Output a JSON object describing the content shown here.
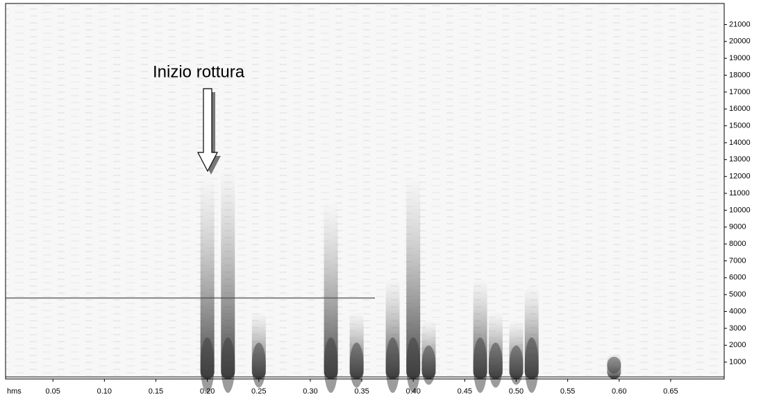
{
  "chart_data": {
    "type": "spectrogram",
    "annotation": "Inizio rottura",
    "xlabel": "hms",
    "x": [
      0.2,
      0.22,
      0.25,
      0.32,
      0.345,
      0.38,
      0.4,
      0.415,
      0.465,
      0.48,
      0.5,
      0.515,
      0.595
    ],
    "values": [
      12000,
      12500,
      4000,
      10500,
      4000,
      6000,
      12000,
      3500,
      6000,
      4000,
      3500,
      5500,
      1500
    ],
    "color": "#3a3a3a",
    "hum_line": 4800,
    "xlim": [
      0.004,
      0.702
    ],
    "ylim": [
      0,
      22250
    ],
    "xticks": [
      0.05,
      {
        "value": 0.1,
        "label": "0.10"
      },
      0.15,
      {
        "value": 0.2,
        "label": "0.20"
      },
      0.25,
      {
        "value": 0.3,
        "label": "0.30"
      },
      0.35,
      {
        "value": 0.4,
        "label": "0.40"
      },
      0.45,
      {
        "value": 0.5,
        "label": "0.50"
      },
      0.55,
      {
        "value": 0.6,
        "label": "0.60"
      },
      0.65
    ],
    "yticks": [
      1000,
      2000,
      3000,
      4000,
      5000,
      6000,
      7000,
      8000,
      9000,
      10000,
      11000,
      12000,
      13000,
      14000,
      15000,
      16000,
      17000,
      18000,
      19000,
      20000,
      21000
    ]
  }
}
